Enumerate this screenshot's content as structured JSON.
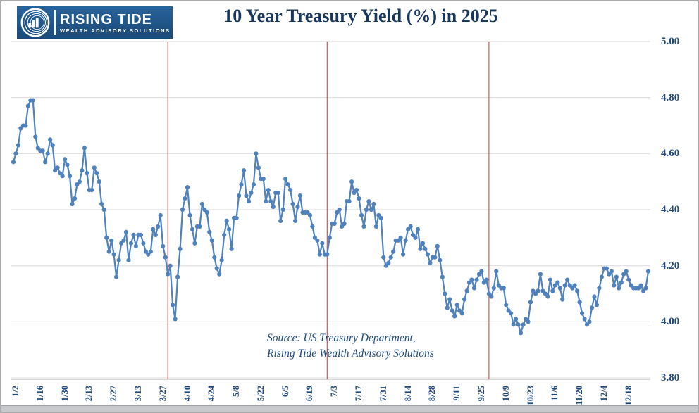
{
  "frame": {
    "border_color": "#a9abad",
    "bottom_strip_color": "#c7c9cc",
    "background": "#ffffff"
  },
  "logo": {
    "name": "RISING TIDE",
    "tagline": "WEALTH ADVISORY SOLUTIONS",
    "band_color_top": "#27639b",
    "band_color_bottom": "#1b4a77",
    "icon": "ripple-circles-with-bar-chart"
  },
  "title": "10 Year Treasury Yield (%) in 2025",
  "source_note": {
    "line1": "Source: US Treasury Department,",
    "line2": "Rising Tide Wealth Advisory Solutions"
  },
  "chart_data": {
    "type": "line",
    "title": "10 Year Treasury Yield (%) in 2025",
    "xlabel": "",
    "ylabel": "",
    "ylim": [
      3.8,
      5.0
    ],
    "y_tick_step": 0.2,
    "y_tick_labels": [
      "5.00",
      "4.80",
      "4.60",
      "4.40",
      "4.20",
      "4.00",
      "3.80"
    ],
    "x_tick_labels": [
      "1/2",
      "1/16",
      "1/30",
      "2/13",
      "2/27",
      "3/13",
      "3/27",
      "4/10",
      "4/24",
      "5/8",
      "5/22",
      "6/5",
      "6/19",
      "7/3",
      "7/17",
      "7/31",
      "8/14",
      "8/28",
      "9/11",
      "9/25",
      "10/9",
      "10/23",
      "11/6",
      "11/20",
      "12/4",
      "12/18"
    ],
    "x_tick_every_n_points": 10,
    "grid": "horizontal",
    "legend_position": "none",
    "colors": {
      "series": "#4f81bd",
      "grid": "#d9d9d9",
      "axis": "#bfbfbf",
      "tick_text": "#1f497d",
      "title_text": "#17375d",
      "event_line": "#c0504d"
    },
    "event_vlines": {
      "color": "#c0504d",
      "at_point_indices": [
        63,
        128,
        194
      ]
    },
    "series": [
      {
        "name": "10 Year Treasury Yield (%)",
        "marker": "circle",
        "color": "#4f81bd",
        "values": [
          4.57,
          4.6,
          4.63,
          4.69,
          4.7,
          4.7,
          4.77,
          4.79,
          4.79,
          4.66,
          4.62,
          4.61,
          4.61,
          4.57,
          4.6,
          4.65,
          4.63,
          4.54,
          4.55,
          4.53,
          4.52,
          4.58,
          4.56,
          4.52,
          4.42,
          4.44,
          4.49,
          4.5,
          4.54,
          4.62,
          4.53,
          4.47,
          4.47,
          4.55,
          4.53,
          4.5,
          4.42,
          4.4,
          4.3,
          4.25,
          4.29,
          4.24,
          4.16,
          4.22,
          4.28,
          4.29,
          4.32,
          4.22,
          4.28,
          4.31,
          4.27,
          4.31,
          4.31,
          4.28,
          4.25,
          4.24,
          4.25,
          4.33,
          4.31,
          4.34,
          4.38,
          4.27,
          4.23,
          4.17,
          4.2,
          4.06,
          4.01,
          4.16,
          4.26,
          4.4,
          4.44,
          4.48,
          4.38,
          4.33,
          4.28,
          4.34,
          4.34,
          4.42,
          4.4,
          4.39,
          4.32,
          4.29,
          4.23,
          4.19,
          4.17,
          4.22,
          4.31,
          4.36,
          4.33,
          4.26,
          4.37,
          4.37,
          4.45,
          4.49,
          4.54,
          4.45,
          4.43,
          4.46,
          4.49,
          4.6,
          4.55,
          4.51,
          4.51,
          4.43,
          4.47,
          4.43,
          4.41,
          4.46,
          4.46,
          4.36,
          4.4,
          4.51,
          4.49,
          4.47,
          4.42,
          4.36,
          4.41,
          4.45,
          4.39,
          4.39,
          4.39,
          4.38,
          4.34,
          4.3,
          4.29,
          4.24,
          4.28,
          4.24,
          4.24,
          4.3,
          4.35,
          4.35,
          4.39,
          4.4,
          4.34,
          4.35,
          4.43,
          4.43,
          4.5,
          4.46,
          4.47,
          4.44,
          4.38,
          4.34,
          4.4,
          4.43,
          4.4,
          4.42,
          4.34,
          4.38,
          4.37,
          4.23,
          4.2,
          4.21,
          4.23,
          4.25,
          4.29,
          4.29,
          4.3,
          4.24,
          4.29,
          4.33,
          4.34,
          4.31,
          4.3,
          4.33,
          4.26,
          4.28,
          4.26,
          4.24,
          4.21,
          4.23,
          4.23,
          4.27,
          4.22,
          4.16,
          4.1,
          4.05,
          4.08,
          4.04,
          4.02,
          4.06,
          4.04,
          4.03,
          4.08,
          4.11,
          4.14,
          4.15,
          4.12,
          4.15,
          4.17,
          4.18,
          4.14,
          4.15,
          4.1,
          4.09,
          4.12,
          4.18,
          4.13,
          4.12,
          4.12,
          4.06,
          4.04,
          4.03,
          3.99,
          4.01,
          3.99,
          3.96,
          3.99,
          4.01,
          4.0,
          4.07,
          4.11,
          4.1,
          4.11,
          4.17,
          4.11,
          4.1,
          4.09,
          4.15,
          4.11,
          4.13,
          4.14,
          4.12,
          4.08,
          4.13,
          4.15,
          4.13,
          4.12,
          4.13,
          4.11,
          4.07,
          4.03,
          4.01,
          3.99,
          4.0,
          4.05,
          4.09,
          4.06,
          4.12,
          4.16,
          4.19,
          4.19,
          4.17,
          4.18,
          4.13,
          4.16,
          4.12,
          4.14,
          4.17,
          4.18,
          4.15,
          4.13,
          4.12,
          4.12,
          4.12,
          4.13,
          4.11,
          4.12,
          4.18
        ]
      }
    ]
  }
}
